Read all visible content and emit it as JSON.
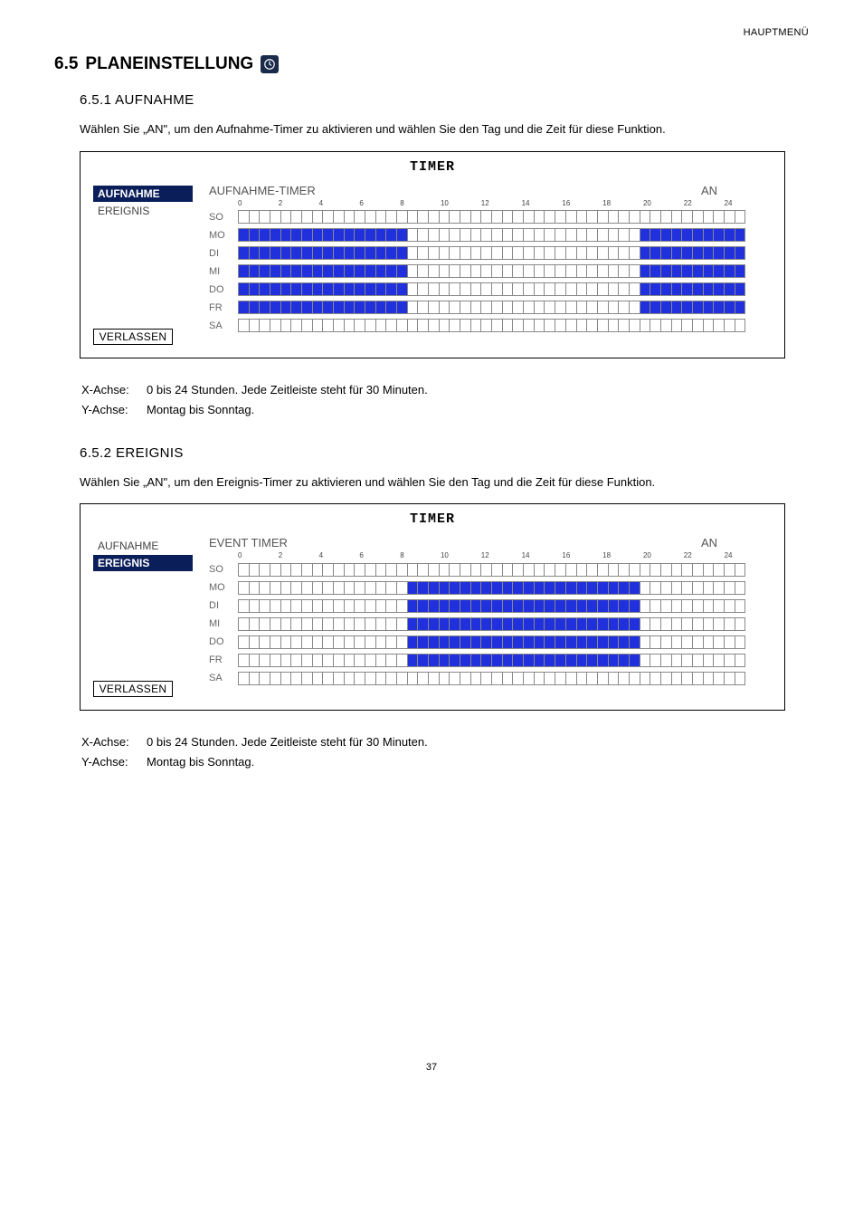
{
  "header_right": "HAUPTMENÜ",
  "section_number": "6.5",
  "section_label": "PLANEINSTELLUNG",
  "sub1": {
    "num": "6.5.1",
    "title": "AUFNAHME",
    "intro": "Wählen Sie „AN\", um den Aufnahme-Timer zu aktivieren und wählen Sie den Tag und die Zeit für diese Funktion."
  },
  "sub2": {
    "num": "6.5.2",
    "title": "EREIGNIS",
    "intro": "Wählen Sie „AN\", um den Ereignis-Timer zu aktivieren und wählen Sie den Tag und die Zeit für diese Funktion."
  },
  "timer_title": "TIMER",
  "side_items": [
    "AUFNAHME",
    "EREIGNIS"
  ],
  "exit_label": "VERLASSEN",
  "status_on": "AN",
  "chart1_header": "AUFNAHME-TIMER",
  "chart2_header": "EVENT TIMER",
  "axis_ticks": [
    "0",
    "2",
    "4",
    "6",
    "8",
    "10",
    "12",
    "14",
    "16",
    "18",
    "20",
    "22",
    "24"
  ],
  "days": [
    "SO",
    "MO",
    "DI",
    "MI",
    "DO",
    "FR",
    "SA"
  ],
  "chart1_ranges": {
    "SO": [],
    "MO": [
      [
        0,
        16
      ],
      [
        38,
        48
      ]
    ],
    "DI": [
      [
        0,
        16
      ],
      [
        38,
        48
      ]
    ],
    "MI": [
      [
        0,
        16
      ],
      [
        38,
        48
      ]
    ],
    "DO": [
      [
        0,
        16
      ],
      [
        38,
        48
      ]
    ],
    "FR": [
      [
        0,
        16
      ],
      [
        38,
        48
      ]
    ],
    "SA": []
  },
  "chart2_ranges": {
    "SO": [],
    "MO": [
      [
        16,
        38
      ]
    ],
    "DI": [
      [
        16,
        38
      ]
    ],
    "MI": [
      [
        16,
        38
      ]
    ],
    "DO": [
      [
        16,
        38
      ]
    ],
    "FR": [
      [
        16,
        38
      ]
    ],
    "SA": []
  },
  "legend": {
    "x_label": "X-Achse:",
    "x_text": "0 bis 24 Stunden. Jede Zeitleiste steht für 30 Minuten.",
    "y_label": "Y-Achse:",
    "y_text": "Montag bis Sonntag."
  },
  "page_number": "37",
  "colors": {
    "filled": "#2030dd",
    "selected_bg": "#0a1e5a",
    "cell_border": "#888888"
  }
}
